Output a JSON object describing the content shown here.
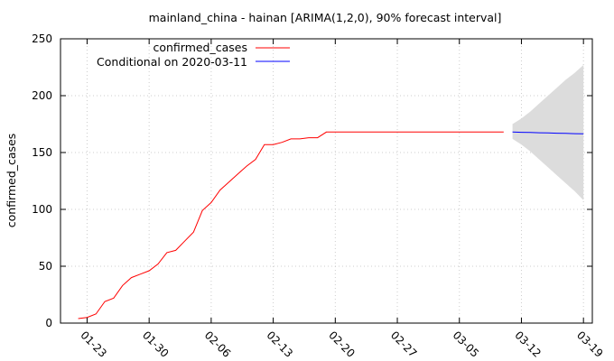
{
  "chart_data": {
    "type": "line",
    "title": "mainland_china - hainan [ARIMA(1,2,0), 90% forecast interval]",
    "xlabel": "",
    "ylabel": "confirmed_cases",
    "ylim": [
      0,
      250
    ],
    "yticks": [
      0,
      50,
      100,
      150,
      200,
      250
    ],
    "xlim": [
      "2020-01-20",
      "2020-03-20"
    ],
    "xticks": [
      "01-23",
      "01-30",
      "02-06",
      "02-13",
      "02-20",
      "02-27",
      "03-05",
      "03-12",
      "03-19"
    ],
    "grid": true,
    "legend_position": "top-left",
    "colors": {
      "confirmed": "#ff0000",
      "forecast": "#0000ff",
      "interval": "#dcdcdc",
      "grid": "#cccccc"
    },
    "series": [
      {
        "name": "confirmed_cases",
        "x": [
          "2020-01-22",
          "2020-01-23",
          "2020-01-24",
          "2020-01-25",
          "2020-01-26",
          "2020-01-27",
          "2020-01-28",
          "2020-01-29",
          "2020-01-30",
          "2020-01-31",
          "2020-02-01",
          "2020-02-02",
          "2020-02-03",
          "2020-02-04",
          "2020-02-05",
          "2020-02-06",
          "2020-02-07",
          "2020-02-08",
          "2020-02-09",
          "2020-02-10",
          "2020-02-11",
          "2020-02-12",
          "2020-02-13",
          "2020-02-14",
          "2020-02-15",
          "2020-02-16",
          "2020-02-17",
          "2020-02-18",
          "2020-02-19",
          "2020-02-20",
          "2020-02-21",
          "2020-02-22",
          "2020-02-23",
          "2020-02-24",
          "2020-02-25",
          "2020-02-26",
          "2020-02-27",
          "2020-02-28",
          "2020-02-29",
          "2020-03-01",
          "2020-03-02",
          "2020-03-03",
          "2020-03-04",
          "2020-03-05",
          "2020-03-06",
          "2020-03-07",
          "2020-03-08",
          "2020-03-09",
          "2020-03-10"
        ],
        "y": [
          4,
          5,
          8,
          19,
          22,
          33,
          40,
          43,
          46,
          52,
          62,
          64,
          72,
          80,
          99,
          106,
          117,
          124,
          131,
          138,
          144,
          157,
          157,
          159,
          162,
          162,
          163,
          163,
          168,
          168,
          168,
          168,
          168,
          168,
          168,
          168,
          168,
          168,
          168,
          168,
          168,
          168,
          168,
          168,
          168,
          168,
          168,
          168,
          168
        ]
      },
      {
        "name": "Conditional on 2020-03-11",
        "x": [
          "2020-03-11",
          "2020-03-12",
          "2020-03-13",
          "2020-03-14",
          "2020-03-15",
          "2020-03-16",
          "2020-03-17",
          "2020-03-18",
          "2020-03-19"
        ],
        "y": [
          168,
          167.8,
          167.6,
          167.4,
          167.2,
          167,
          166.8,
          166.6,
          166.4
        ]
      }
    ],
    "interval": {
      "x": [
        "2020-03-11",
        "2020-03-12",
        "2020-03-13",
        "2020-03-14",
        "2020-03-15",
        "2020-03-16",
        "2020-03-17",
        "2020-03-18",
        "2020-03-19"
      ],
      "lower": [
        162,
        157,
        151,
        144,
        137,
        130,
        123,
        116,
        108
      ],
      "upper": [
        175,
        180,
        186,
        193,
        200,
        207,
        214,
        220,
        227
      ]
    }
  }
}
